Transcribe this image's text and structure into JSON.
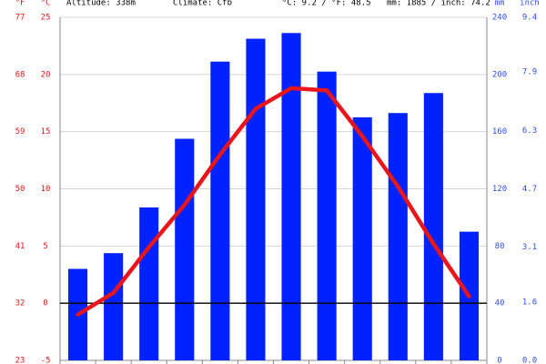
{
  "chart_data": {
    "type": "climate",
    "annotations": [
      "Altitude: 338m",
      "Climate: Cfb",
      "°C: 9.2 / °F: 48.5",
      "mm: 1885 / inch: 74.2"
    ],
    "y_label": "°C",
    "y_label_f": "°F",
    "y2_label": "mm",
    "y2_label_inch": "inch",
    "categories": [
      null,
      null,
      null,
      null,
      null,
      null,
      null,
      null,
      null,
      null,
      null,
      null
    ],
    "series": [
      {
        "kind": "bar",
        "axis": "y2",
        "color": "#0022ff",
        "values": [
          64,
          75,
          107,
          155,
          209,
          225,
          229,
          202,
          170,
          173,
          187,
          90
        ]
      },
      {
        "kind": "line",
        "axis": "y",
        "color": "#e8161b",
        "values": [
          -1.0,
          0.9,
          4.9,
          8.6,
          13.0,
          17.0,
          18.8,
          18.6,
          14.6,
          10.2,
          5.2,
          0.6
        ]
      }
    ],
    "ylim": [
      -5,
      25
    ],
    "yticks": [
      -5,
      0,
      5,
      10,
      15,
      20,
      25
    ],
    "ylim_f": [
      23,
      77
    ],
    "yticks_f": [
      23,
      32,
      41,
      50,
      59,
      68,
      77
    ],
    "y2lim": [
      0,
      240
    ],
    "y2ticks": [
      0,
      40,
      80,
      120,
      160,
      200,
      240
    ],
    "y2lim_inch": [
      0,
      9.4
    ],
    "y2ticks_inch": [
      {
        "value": 0,
        "label": "0.0"
      },
      1.6,
      3.1,
      4.7,
      6.3,
      7.9,
      9.4
    ],
    "zero_line": 0,
    "grid": true
  }
}
